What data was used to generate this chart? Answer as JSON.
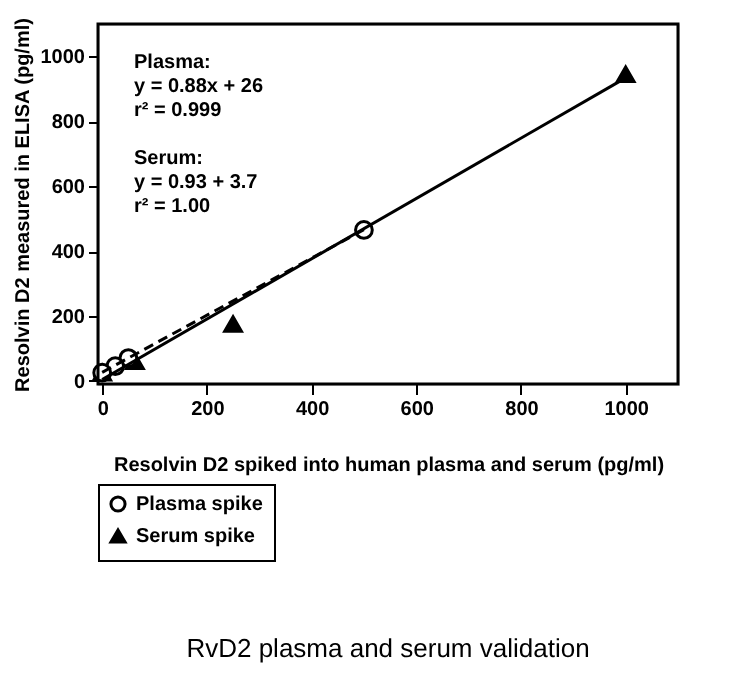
{
  "chart_data": {
    "type": "scatter",
    "title": "RvD2 plasma and serum validation",
    "xlabel": "Resolvin D2 spiked into human plasma and serum (pg/ml)",
    "ylabel": "Resolvin D2 measured in ELISA (pg/ml)",
    "series": [
      {
        "name": "Plasma spike",
        "color": "#000000",
        "marker": "circle",
        "x": [
          0,
          25,
          50,
          500
        ],
        "values": [
          25,
          45,
          70,
          465
        ]
      },
      {
        "name": "Serum spike",
        "color": "#000000",
        "marker": "triangle",
        "x": [
          0,
          62.5,
          250,
          1000
        ],
        "values": [
          25,
          60,
          175,
          945
        ]
      },
      {
        "type": "line",
        "color": "#000000",
        "line_style": "dashed",
        "x": [
          0,
          500
        ],
        "values": [
          26,
          466
        ]
      },
      {
        "type": "line",
        "color": "#000000",
        "line_style": "solid",
        "x": [
          0,
          1000
        ],
        "values": [
          4,
          934
        ]
      }
    ],
    "annotations": [
      "Plasma:\ny = 0.88x + 26\nr² = 0.999",
      "Serum:\ny = 0.93 + 3.7\nr² = 1.00"
    ],
    "xlim": [
      -8,
      1100
    ],
    "ylim": [
      -10,
      1100
    ],
    "xticks": [
      0,
      200,
      400,
      600,
      800,
      1000
    ],
    "yticks": [
      0,
      200,
      400,
      600,
      800,
      1000
    ],
    "grid": false,
    "legend": "bottom left"
  }
}
